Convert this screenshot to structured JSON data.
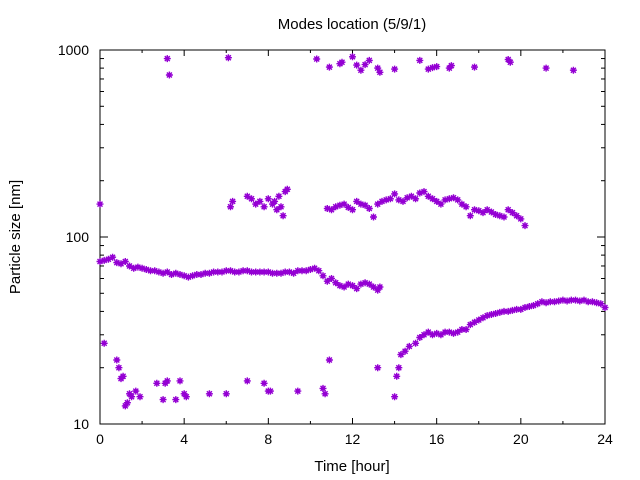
{
  "chart_data": {
    "type": "scatter",
    "title": "Modes location (5/9/1)",
    "xlabel": "Time [hour]",
    "ylabel": "Particle size [nm]",
    "xlim": [
      0,
      24
    ],
    "ylim": [
      10,
      1000
    ],
    "yscale": "log",
    "grid": false,
    "marker_color": "#9400d3",
    "x_ticks": [
      0,
      4,
      8,
      12,
      16,
      20,
      24
    ],
    "x_tick_labels": [
      "0",
      "4",
      "8",
      "12",
      "16",
      "20",
      "24"
    ],
    "x_minor_ticks": [
      2,
      6,
      10,
      14,
      18,
      22
    ],
    "y_ticks": [
      10,
      100,
      1000
    ],
    "y_tick_labels": [
      "10",
      "100",
      "1000"
    ],
    "series": [
      {
        "points": [
          [
            3.2,
            900
          ],
          [
            3.3,
            735
          ],
          [
            6.1,
            910
          ],
          [
            10.3,
            895
          ],
          [
            10.9,
            810
          ],
          [
            11.4,
            845
          ],
          [
            11.5,
            860
          ],
          [
            12.0,
            920
          ],
          [
            12.2,
            830
          ],
          [
            12.4,
            780
          ],
          [
            12.6,
            835
          ],
          [
            12.8,
            880
          ],
          [
            13.2,
            800
          ],
          [
            13.3,
            760
          ],
          [
            14.0,
            790
          ],
          [
            15.2,
            880
          ],
          [
            15.6,
            790
          ],
          [
            15.8,
            805
          ],
          [
            16.0,
            815
          ],
          [
            16.6,
            800
          ],
          [
            16.7,
            825
          ],
          [
            17.8,
            810
          ],
          [
            19.4,
            890
          ],
          [
            19.5,
            860
          ],
          [
            21.2,
            800
          ],
          [
            22.5,
            780
          ]
        ]
      },
      {
        "points": [
          [
            0.0,
            150
          ],
          [
            6.2,
            145
          ],
          [
            6.3,
            155
          ],
          [
            7.0,
            165
          ],
          [
            7.2,
            160
          ],
          [
            7.4,
            150
          ],
          [
            7.6,
            155
          ],
          [
            7.8,
            145
          ],
          [
            8.0,
            160
          ],
          [
            8.2,
            150
          ],
          [
            8.3,
            155
          ],
          [
            8.4,
            140
          ],
          [
            8.5,
            165
          ],
          [
            8.6,
            145
          ],
          [
            8.7,
            130
          ],
          [
            8.8,
            175
          ],
          [
            8.9,
            180
          ],
          [
            10.8,
            142
          ],
          [
            11.0,
            140
          ],
          [
            11.2,
            145
          ],
          [
            11.4,
            148
          ],
          [
            11.6,
            150
          ],
          [
            11.8,
            144
          ],
          [
            12.0,
            140
          ],
          [
            12.2,
            155
          ],
          [
            12.4,
            150
          ],
          [
            12.6,
            148
          ],
          [
            12.8,
            142
          ],
          [
            13.0,
            128
          ],
          [
            13.2,
            150
          ],
          [
            13.4,
            155
          ],
          [
            13.6,
            158
          ],
          [
            13.8,
            160
          ],
          [
            14.0,
            170
          ],
          [
            14.2,
            158
          ],
          [
            14.4,
            155
          ],
          [
            14.6,
            162
          ],
          [
            14.8,
            165
          ],
          [
            15.0,
            160
          ],
          [
            15.2,
            172
          ],
          [
            15.4,
            175
          ],
          [
            15.6,
            165
          ],
          [
            15.8,
            160
          ],
          [
            16.0,
            155
          ],
          [
            16.2,
            150
          ],
          [
            16.4,
            158
          ],
          [
            16.6,
            160
          ],
          [
            16.8,
            162
          ],
          [
            17.0,
            158
          ],
          [
            17.2,
            150
          ],
          [
            17.4,
            145
          ],
          [
            17.6,
            130
          ],
          [
            17.8,
            140
          ],
          [
            18.0,
            138
          ],
          [
            18.2,
            135
          ],
          [
            18.4,
            140
          ],
          [
            18.6,
            136
          ],
          [
            18.8,
            132
          ],
          [
            19.0,
            130
          ],
          [
            19.2,
            128
          ],
          [
            19.4,
            140
          ],
          [
            19.6,
            135
          ],
          [
            19.8,
            130
          ],
          [
            20.0,
            125
          ],
          [
            20.2,
            115
          ]
        ]
      },
      {
        "points": [
          [
            0.0,
            74
          ],
          [
            0.2,
            75
          ],
          [
            0.4,
            76
          ],
          [
            0.6,
            78
          ],
          [
            0.8,
            73
          ],
          [
            1.0,
            72
          ],
          [
            1.2,
            74
          ],
          [
            1.4,
            70
          ],
          [
            1.6,
            68
          ],
          [
            1.8,
            69
          ],
          [
            2.0,
            68
          ],
          [
            2.2,
            67
          ],
          [
            2.4,
            66
          ],
          [
            2.6,
            66
          ],
          [
            2.8,
            65
          ],
          [
            3.0,
            64
          ],
          [
            3.2,
            65
          ],
          [
            3.4,
            63
          ],
          [
            3.6,
            64
          ],
          [
            3.8,
            63
          ],
          [
            4.0,
            62
          ],
          [
            4.2,
            61
          ],
          [
            4.4,
            62
          ],
          [
            4.6,
            63
          ],
          [
            4.8,
            63
          ],
          [
            5.0,
            64
          ],
          [
            5.2,
            64
          ],
          [
            5.4,
            65
          ],
          [
            5.6,
            65
          ],
          [
            5.8,
            65
          ],
          [
            6.0,
            66
          ],
          [
            6.2,
            66
          ],
          [
            6.4,
            65
          ],
          [
            6.6,
            65
          ],
          [
            6.8,
            66
          ],
          [
            7.0,
            66
          ],
          [
            7.2,
            65
          ],
          [
            7.4,
            65
          ],
          [
            7.6,
            65
          ],
          [
            7.8,
            65
          ],
          [
            8.0,
            65
          ],
          [
            8.2,
            64
          ],
          [
            8.4,
            64
          ],
          [
            8.6,
            64
          ],
          [
            8.8,
            65
          ],
          [
            9.0,
            65
          ],
          [
            9.2,
            64
          ],
          [
            9.4,
            66
          ],
          [
            9.6,
            66
          ],
          [
            9.8,
            66
          ],
          [
            10.0,
            67
          ],
          [
            10.2,
            68
          ],
          [
            10.4,
            66
          ],
          [
            10.6,
            62
          ],
          [
            10.8,
            58
          ],
          [
            11.0,
            60
          ],
          [
            11.2,
            57
          ],
          [
            11.4,
            55
          ],
          [
            11.6,
            54
          ],
          [
            11.8,
            56
          ],
          [
            12.0,
            55
          ],
          [
            12.2,
            53
          ],
          [
            12.4,
            56
          ],
          [
            12.6,
            57
          ],
          [
            12.8,
            56
          ],
          [
            13.0,
            54
          ],
          [
            13.2,
            52
          ],
          [
            13.3,
            54
          ]
        ]
      },
      {
        "points": [
          [
            0.2,
            27
          ],
          [
            0.8,
            22
          ],
          [
            0.9,
            20
          ],
          [
            1.0,
            17.5
          ],
          [
            1.1,
            18
          ],
          [
            1.2,
            12.5
          ],
          [
            1.3,
            13
          ],
          [
            1.4,
            14.5
          ],
          [
            1.5,
            14
          ],
          [
            1.7,
            15
          ],
          [
            1.9,
            14
          ],
          [
            2.7,
            16.5
          ],
          [
            3.0,
            13.5
          ],
          [
            3.1,
            16.5
          ],
          [
            3.2,
            17
          ],
          [
            3.6,
            13.5
          ],
          [
            3.8,
            17
          ],
          [
            4.0,
            14.5
          ],
          [
            4.1,
            14
          ],
          [
            5.2,
            14.5
          ],
          [
            6.0,
            14.5
          ],
          [
            7.0,
            17
          ],
          [
            7.8,
            16.5
          ],
          [
            8.0,
            15
          ],
          [
            8.1,
            15
          ],
          [
            9.4,
            15
          ],
          [
            10.6,
            15.5
          ],
          [
            10.7,
            14.5
          ],
          [
            10.9,
            22
          ],
          [
            13.2,
            20
          ],
          [
            14.0,
            14
          ],
          [
            14.1,
            18
          ],
          [
            14.2,
            20
          ],
          [
            14.3,
            23.5
          ],
          [
            14.5,
            24.5
          ],
          [
            14.7,
            26
          ],
          [
            15.0,
            27
          ],
          [
            15.2,
            29
          ],
          [
            15.4,
            30
          ],
          [
            15.6,
            31
          ],
          [
            15.8,
            30
          ],
          [
            16.0,
            30.5
          ],
          [
            16.2,
            30
          ],
          [
            16.4,
            31
          ],
          [
            16.6,
            31
          ],
          [
            16.8,
            30.5
          ],
          [
            17.0,
            31
          ],
          [
            17.2,
            32
          ],
          [
            17.4,
            32
          ],
          [
            17.6,
            34
          ],
          [
            17.8,
            35
          ],
          [
            18.0,
            36
          ],
          [
            18.2,
            37
          ],
          [
            18.4,
            38
          ],
          [
            18.6,
            38.5
          ],
          [
            18.8,
            39
          ],
          [
            19.0,
            39.5
          ],
          [
            19.2,
            40
          ],
          [
            19.4,
            40
          ],
          [
            19.6,
            40.5
          ],
          [
            19.8,
            41
          ],
          [
            20.0,
            41
          ],
          [
            20.2,
            42
          ],
          [
            20.4,
            42.5
          ],
          [
            20.6,
            43
          ],
          [
            20.8,
            44
          ],
          [
            21.0,
            45
          ],
          [
            21.2,
            44.5
          ],
          [
            21.4,
            45
          ],
          [
            21.6,
            45
          ],
          [
            21.8,
            45.5
          ],
          [
            22.0,
            46
          ],
          [
            22.2,
            45.5
          ],
          [
            22.4,
            46
          ],
          [
            22.6,
            46
          ],
          [
            22.8,
            45.5
          ],
          [
            23.0,
            46
          ],
          [
            23.2,
            45
          ],
          [
            23.4,
            45
          ],
          [
            23.6,
            44.5
          ],
          [
            23.8,
            44
          ],
          [
            24.0,
            42
          ]
        ]
      }
    ]
  }
}
